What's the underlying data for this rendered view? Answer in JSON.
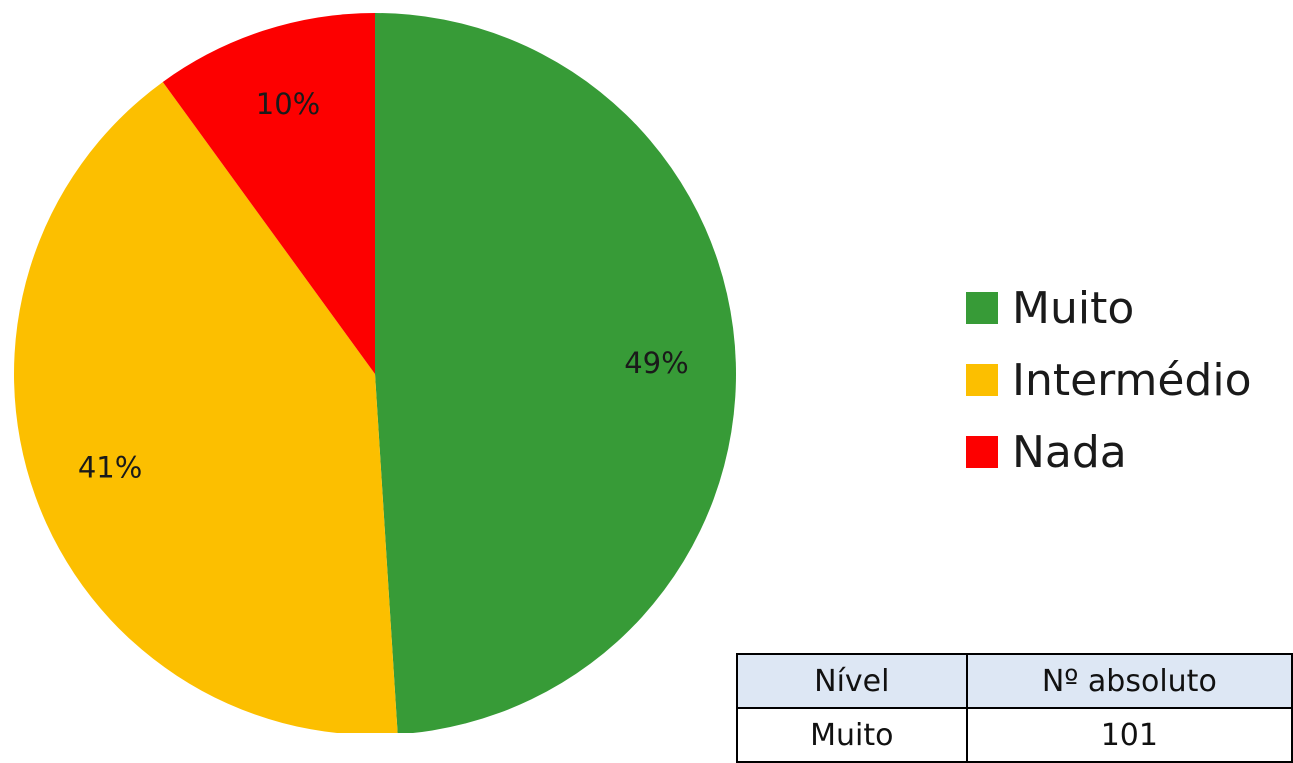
{
  "chart_data": {
    "type": "pie",
    "slices": [
      {
        "label": "Muito",
        "percent": 49,
        "display": "49%",
        "color": "#379b37"
      },
      {
        "label": "Intermédio",
        "percent": 41,
        "display": "41%",
        "color": "#fcbf00"
      },
      {
        "label": "Nada",
        "percent": 10,
        "display": "10%",
        "color": "#fd0000"
      }
    ],
    "legend": {
      "placement": "right",
      "entries": [
        "Muito",
        "Intermédio",
        "Nada"
      ]
    },
    "start": "12 o'clock",
    "direction": "clockwise"
  },
  "table": {
    "headers": [
      "Nível",
      "Nº absoluto"
    ],
    "rows": [
      [
        "Muito",
        "101"
      ]
    ]
  }
}
